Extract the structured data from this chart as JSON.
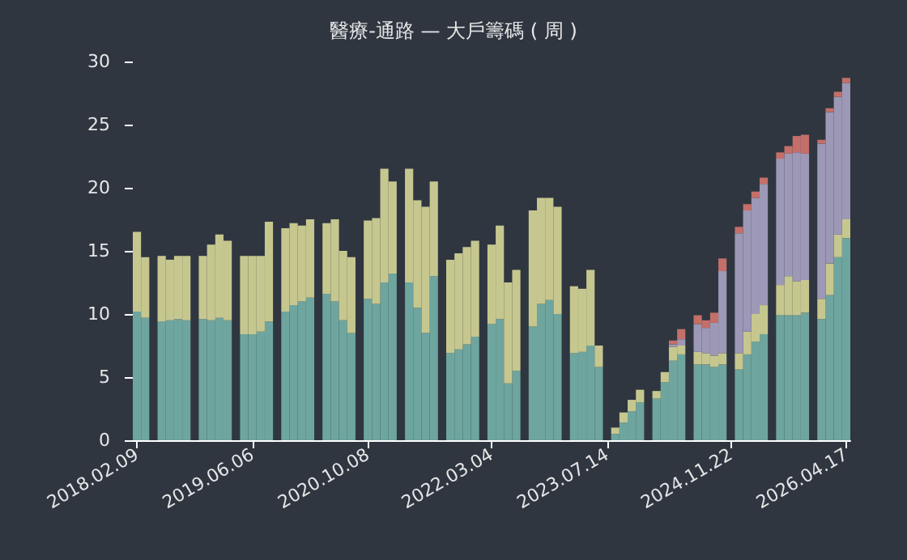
{
  "chart_data": {
    "type": "bar",
    "title": "醫療-通路 — 大戶籌碼 ( 周 )",
    "stacked": true,
    "categories": [
      "2018.02.09",
      null,
      null,
      null,
      null,
      null,
      null,
      null,
      null,
      null,
      null,
      null,
      null,
      null,
      "2019.06.06",
      null,
      null,
      null,
      null,
      null,
      null,
      null,
      null,
      null,
      null,
      null,
      null,
      null,
      "2020.10.08",
      null,
      null,
      null,
      null,
      null,
      null,
      null,
      null,
      null,
      null,
      null,
      null,
      null,
      null,
      "2022.03.04",
      null,
      null,
      null,
      null,
      null,
      null,
      null,
      null,
      null,
      null,
      null,
      null,
      null,
      "2023.07.14",
      null,
      null,
      null,
      null,
      null,
      null,
      null,
      null,
      null,
      null,
      null,
      null,
      null,
      null,
      "2024.11.22",
      null,
      null,
      null,
      null,
      null,
      null,
      null,
      null,
      null,
      null,
      null,
      null,
      null,
      "2026.04.17"
    ],
    "series": [
      {
        "color": "#6ea59e",
        "values": [
          10.2,
          9.7,
          null,
          9.4,
          9.5,
          9.6,
          9.5,
          null,
          9.6,
          9.5,
          9.7,
          9.5,
          null,
          8.4,
          8.4,
          8.6,
          9.4,
          null,
          10.2,
          10.7,
          11.0,
          11.3,
          null,
          11.6,
          11.0,
          9.5,
          8.5,
          null,
          11.2,
          10.8,
          12.5,
          13.2,
          null,
          12.5,
          10.5,
          8.5,
          13.0,
          null,
          6.9,
          7.2,
          7.6,
          8.2,
          null,
          9.2,
          9.6,
          4.5,
          5.5,
          null,
          9.0,
          10.8,
          11.1,
          10.0,
          null,
          6.9,
          7.0,
          7.5,
          5.8,
          null,
          0.5,
          1.4,
          2.3,
          3.0,
          null,
          3.3,
          4.6,
          6.3,
          6.8,
          null,
          6.0,
          6.0,
          5.8,
          6.0,
          null,
          5.6,
          6.8,
          7.8,
          8.4,
          null,
          9.9,
          9.9,
          9.9,
          10.1,
          null,
          9.6,
          11.5,
          14.5,
          16.0
        ]
      },
      {
        "color": "#c6c78f",
        "values": [
          6.3,
          4.8,
          null,
          5.2,
          4.8,
          5.0,
          5.1,
          null,
          5.0,
          6.0,
          6.6,
          6.3,
          null,
          6.2,
          6.2,
          6.0,
          7.9,
          null,
          6.6,
          6.5,
          6.0,
          6.2,
          null,
          5.6,
          6.5,
          5.5,
          6.0,
          null,
          6.2,
          6.8,
          9.0,
          7.3,
          null,
          9.0,
          8.5,
          10.0,
          7.5,
          null,
          7.4,
          7.6,
          7.7,
          7.6,
          null,
          6.3,
          7.4,
          8.0,
          8.0,
          null,
          9.2,
          8.4,
          8.1,
          8.5,
          null,
          5.3,
          5.0,
          6.0,
          1.7,
          null,
          0.5,
          0.8,
          0.9,
          1.0,
          null,
          0.6,
          0.8,
          1.1,
          0.7,
          null,
          1.0,
          0.9,
          0.9,
          0.9,
          null,
          1.3,
          1.8,
          2.2,
          2.3,
          null,
          2.4,
          3.1,
          2.7,
          2.6,
          null,
          1.6,
          2.5,
          1.8,
          1.5
        ]
      },
      {
        "color": "#9c98b6",
        "values": [
          null,
          null,
          null,
          null,
          null,
          null,
          null,
          null,
          null,
          null,
          null,
          null,
          null,
          null,
          null,
          null,
          null,
          null,
          null,
          null,
          null,
          null,
          null,
          null,
          null,
          null,
          null,
          null,
          null,
          null,
          null,
          null,
          null,
          null,
          null,
          null,
          null,
          null,
          null,
          null,
          null,
          null,
          null,
          null,
          null,
          null,
          null,
          null,
          null,
          null,
          null,
          null,
          null,
          null,
          null,
          null,
          null,
          null,
          null,
          null,
          null,
          null,
          null,
          null,
          null,
          0.2,
          0.5,
          null,
          2.2,
          2.0,
          2.6,
          6.5,
          null,
          9.5,
          9.6,
          9.2,
          9.6,
          null,
          10.0,
          9.7,
          10.2,
          10.0,
          null,
          12.3,
          12.0,
          10.9,
          10.8
        ]
      },
      {
        "color": "#c46f69",
        "values": [
          null,
          null,
          null,
          null,
          null,
          null,
          null,
          null,
          null,
          null,
          null,
          null,
          null,
          null,
          null,
          null,
          null,
          null,
          null,
          null,
          null,
          null,
          null,
          null,
          null,
          null,
          null,
          null,
          null,
          null,
          null,
          null,
          null,
          null,
          null,
          null,
          null,
          null,
          null,
          null,
          null,
          null,
          null,
          null,
          null,
          null,
          null,
          null,
          null,
          null,
          null,
          null,
          null,
          null,
          null,
          null,
          null,
          null,
          null,
          null,
          null,
          null,
          null,
          null,
          null,
          0.3,
          0.8,
          null,
          0.7,
          0.6,
          0.8,
          1.0,
          null,
          0.5,
          0.5,
          0.5,
          0.5,
          null,
          0.5,
          0.6,
          1.3,
          1.5,
          null,
          0.3,
          0.3,
          0.4,
          0.4
        ]
      }
    ],
    "ylim": [
      0,
      30
    ],
    "yticks": [
      0,
      5,
      10,
      15,
      20,
      25,
      30
    ]
  }
}
